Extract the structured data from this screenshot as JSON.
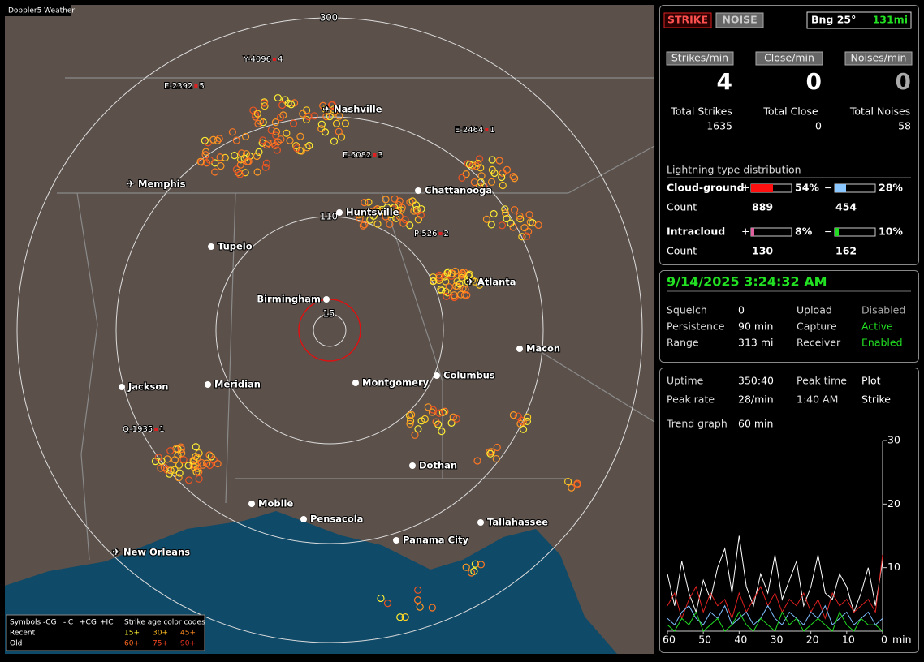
{
  "map": {
    "title": "Doppler5 Weather",
    "ring_labels": [
      300,
      110,
      15
    ],
    "cities": [
      "Nashville",
      "Memphis",
      "Chattanooga",
      "Huntsville",
      "Tupelo",
      "Birmingham",
      "Atlanta",
      "Macon",
      "Jackson",
      "Meridian",
      "Montgomery",
      "Columbus",
      "Dothan",
      "Mobile",
      "Pensacola",
      "Tallahassee",
      "Panama City",
      "New Orleans"
    ],
    "storms": [
      {
        "id": "Y-4096",
        "n": "4"
      },
      {
        "id": "E-2392",
        "n": "5"
      },
      {
        "id": "E-2464",
        "n": "1"
      },
      {
        "id": "E-6082",
        "n": "3"
      },
      {
        "id": "P-526",
        "n": "2"
      },
      {
        "id": "Q-1935",
        "n": "1"
      }
    ],
    "legend": {
      "symbols": "Symbols",
      "heads": [
        "-CG",
        "-IC",
        "+CG",
        "+IC"
      ],
      "age_title": "Strike age color codes",
      "recent": "Recent",
      "old": "Old",
      "recent_ages": [
        "15+",
        "30+",
        "45+"
      ],
      "old_ages": [
        "60+",
        "75+",
        "90+"
      ]
    }
  },
  "counters": {
    "strike_button": "STRIKE",
    "noise_button": "NOISE",
    "bearing": "Bng 25°",
    "distance": "131mi",
    "rates": [
      {
        "label": "Strikes/min",
        "value": 4
      },
      {
        "label": "Close/min",
        "value": 0
      },
      {
        "label": "Noises/min",
        "value": 0
      }
    ],
    "totals": [
      {
        "label": "Total Strikes",
        "value": 1635
      },
      {
        "label": "Total Close",
        "value": 0
      },
      {
        "label": "Total Noises",
        "value": 58
      }
    ]
  },
  "distribution": {
    "title": "Lightning type distribution",
    "count_label": "Count",
    "rows": [
      {
        "name": "Cloud-ground",
        "pos": {
          "value": 54,
          "label": "54%"
        },
        "neg": {
          "value": 28,
          "label": "28%"
        },
        "pos_count": 889,
        "neg_count": 454
      },
      {
        "name": "Intracloud",
        "pos": {
          "value": 8,
          "label": "8%"
        },
        "neg": {
          "value": 10,
          "label": "10%"
        },
        "pos_count": 130,
        "neg_count": 162
      }
    ],
    "plus": "+",
    "minus": "−"
  },
  "status": {
    "datetime": "9/14/2025 3:24:32 AM",
    "rows": [
      [
        "Squelch",
        "0",
        "Upload",
        "Disabled"
      ],
      [
        "Persistence",
        "90 min",
        "Capture",
        "Active"
      ],
      [
        "Range",
        "313 mi",
        "Receiver",
        "Enabled"
      ]
    ]
  },
  "stats": {
    "rows": [
      [
        "Uptime",
        "350:40",
        "Peak time",
        "Plot"
      ],
      [
        "Peak rate",
        "28/min",
        "1:40 AM",
        "Strike"
      ]
    ],
    "trend_label": "Trend graph",
    "trend_span": "60 min"
  },
  "trend_graph": {
    "type": "line",
    "xlim": [
      60,
      0
    ],
    "ylim": [
      0,
      30
    ],
    "xticks": [
      60,
      50,
      40,
      30,
      20,
      10,
      0
    ],
    "yticks": [
      10,
      20,
      30
    ],
    "x_unit": "min",
    "x": [
      60,
      58,
      56,
      54,
      52,
      50,
      48,
      46,
      44,
      42,
      40,
      38,
      36,
      34,
      32,
      30,
      28,
      26,
      24,
      22,
      20,
      18,
      16,
      14,
      12,
      10,
      8,
      6,
      4,
      2,
      0
    ],
    "series": [
      {
        "color": "#ffffff",
        "values": [
          9,
          4,
          11,
          6,
          3,
          8,
          5,
          10,
          13,
          6,
          15,
          7,
          4,
          9,
          6,
          12,
          5,
          8,
          11,
          4,
          7,
          12,
          6,
          5,
          9,
          7,
          3,
          6,
          10,
          4,
          11
        ]
      },
      {
        "color": "#e02020",
        "values": [
          4,
          6,
          2,
          5,
          7,
          3,
          6,
          4,
          5,
          2,
          6,
          3,
          5,
          7,
          4,
          6,
          3,
          5,
          4,
          6,
          3,
          5,
          2,
          6,
          4,
          5,
          3,
          4,
          5,
          3,
          12
        ]
      },
      {
        "color": "#7fbfff",
        "values": [
          2,
          1,
          3,
          4,
          2,
          1,
          3,
          2,
          4,
          1,
          2,
          3,
          1,
          2,
          4,
          2,
          1,
          3,
          2,
          1,
          3,
          2,
          4,
          1,
          2,
          3,
          1,
          2,
          3,
          1,
          2
        ]
      },
      {
        "color": "#22dd22",
        "values": [
          1,
          0,
          2,
          1,
          3,
          0,
          1,
          2,
          0,
          1,
          3,
          1,
          0,
          2,
          1,
          0,
          3,
          1,
          2,
          0,
          1,
          2,
          1,
          0,
          3,
          1,
          0,
          2,
          1,
          1,
          0
        ]
      }
    ]
  }
}
